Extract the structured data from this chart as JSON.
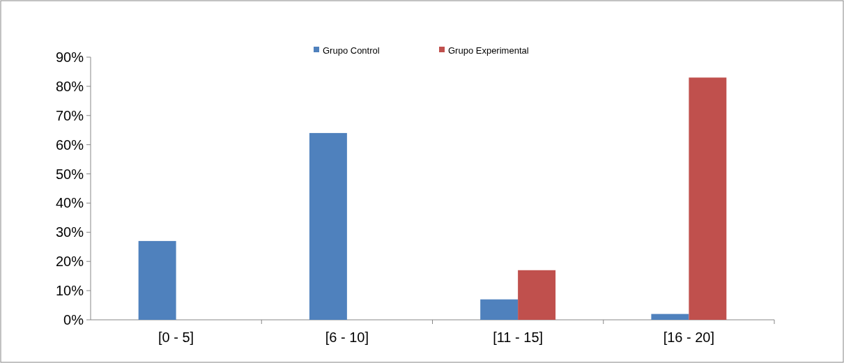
{
  "chart_data": {
    "type": "bar",
    "categories": [
      "[0 - 5]",
      "[6 - 10]",
      "[11 - 15]",
      "[16 - 20]"
    ],
    "series": [
      {
        "name": "Grupo Control",
        "color": "#4f81bd",
        "values": [
          27,
          64,
          7,
          2
        ]
      },
      {
        "name": "Grupo Experimental",
        "color": "#c0504d",
        "values": [
          0,
          0,
          17,
          83
        ]
      }
    ],
    "ylim": [
      0,
      90
    ],
    "yticks": [
      {
        "value": 0,
        "label": "0%"
      },
      {
        "value": 10,
        "label": "10%"
      },
      {
        "value": 20,
        "label": "20%"
      },
      {
        "value": 30,
        "label": "30%"
      },
      {
        "value": 40,
        "label": "40%"
      },
      {
        "value": 50,
        "label": "50%"
      },
      {
        "value": 60,
        "label": "60%"
      },
      {
        "value": 70,
        "label": "70%"
      },
      {
        "value": 80,
        "label": "80%"
      },
      {
        "value": 90,
        "label": "90%"
      }
    ],
    "legend": "top"
  }
}
